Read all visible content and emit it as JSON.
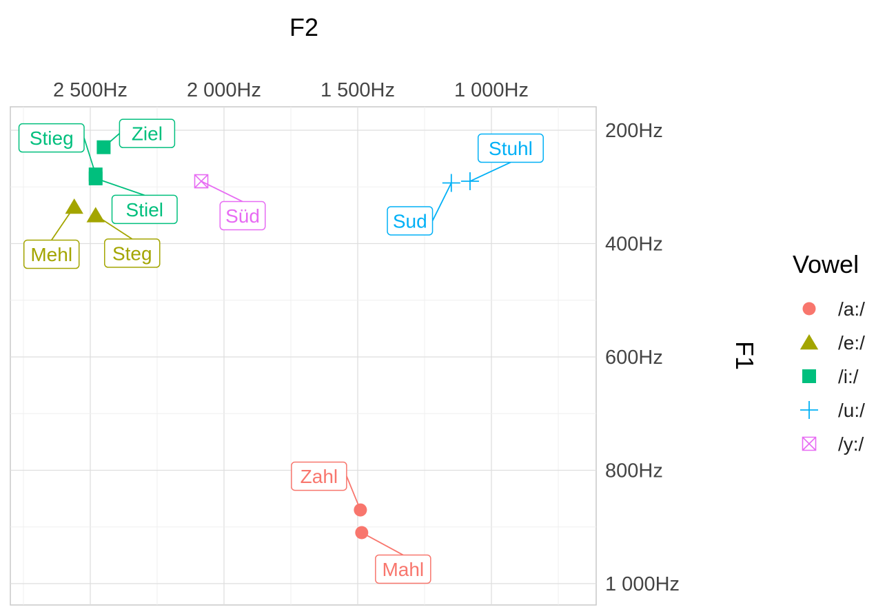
{
  "chart_data": {
    "type": "scatter",
    "xlabel": "F2",
    "ylabel": "F1",
    "x_axis": {
      "reversed": true,
      "position": "top",
      "ticks": [
        2500,
        2000,
        1500,
        1000
      ],
      "tick_labels": [
        "2 500Hz",
        "2 000Hz",
        "1 500Hz",
        "1 000Hz"
      ],
      "xlim": [
        2800,
        600
      ]
    },
    "y_axis": {
      "reversed": true,
      "position": "right",
      "ticks": [
        200,
        400,
        600,
        800,
        1000
      ],
      "tick_labels": [
        "200Hz",
        "400Hz",
        "600Hz",
        "800Hz",
        "1 000Hz"
      ],
      "ylim": [
        160,
        1040
      ]
    },
    "grid": true,
    "legend": {
      "title": "Vowel",
      "placement": "right",
      "items": [
        {
          "label": "/a:/",
          "shape": "circle",
          "color": "#F8766D"
        },
        {
          "label": "/e:/",
          "shape": "triangle",
          "color": "#A3A500"
        },
        {
          "label": "/i:/",
          "shape": "square",
          "color": "#00BF7D"
        },
        {
          "label": "/u:/",
          "shape": "plus",
          "color": "#00B0F6"
        },
        {
          "label": "/y:/",
          "shape": "boxed-x",
          "color": "#E76BF3"
        }
      ]
    },
    "points": [
      {
        "word": "Zahl",
        "vowel": "/a:/",
        "f2": 1490,
        "f1": 870
      },
      {
        "word": "Mahl",
        "vowel": "/a:/",
        "f2": 1485,
        "f1": 910
      },
      {
        "word": "Mehl",
        "vowel": "/e:/",
        "f2": 2560,
        "f1": 335
      },
      {
        "word": "Steg",
        "vowel": "/e:/",
        "f2": 2480,
        "f1": 350
      },
      {
        "word": "Ziel",
        "vowel": "/i:/",
        "f2": 2450,
        "f1": 230
      },
      {
        "word": "Stieg",
        "vowel": "/i:/",
        "f2": 2480,
        "f1": 278
      },
      {
        "word": "Stiel",
        "vowel": "/i:/",
        "f2": 2480,
        "f1": 285
      },
      {
        "word": "Stuhl",
        "vowel": "/u:/",
        "f2": 1080,
        "f1": 290
      },
      {
        "word": "Sud",
        "vowel": "/u:/",
        "f2": 1150,
        "f1": 293
      },
      {
        "word": "Süd",
        "vowel": "/y:/",
        "f2": 2085,
        "f1": 290
      }
    ]
  }
}
